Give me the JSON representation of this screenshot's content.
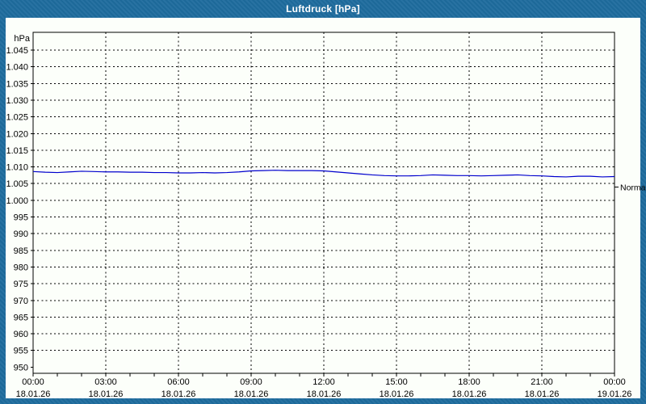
{
  "window": {
    "title": "Luftdruck [hPa]"
  },
  "colors": {
    "titlebar_blue": "#1e6c9e",
    "panel_bg": "#fcfffa",
    "line_blue": "#0000cd",
    "grid_black": "#000000"
  },
  "chart_data": {
    "type": "line",
    "title": "Luftdruck [hPa]",
    "unit_label": "hPa",
    "normal_label": "Normal",
    "normal_value": 1004,
    "ylim": [
      950,
      1045
    ],
    "ytick_step": 5,
    "ytick_labels": [
      "1.045",
      "1.040",
      "1.035",
      "1.030",
      "1.025",
      "1.020",
      "1.015",
      "1.010",
      "1.005",
      "1.000",
      "995",
      "990",
      "985",
      "980",
      "975",
      "970",
      "965",
      "960",
      "955",
      "950"
    ],
    "grid": "dashed",
    "x_hours_range": [
      0,
      24
    ],
    "x_minor_tick_every_hours": 1,
    "x_major_tick_every_hours": 3,
    "x_ticks": [
      {
        "time": "00:00",
        "date": "18.01.26"
      },
      {
        "time": "03:00",
        "date": "18.01.26"
      },
      {
        "time": "06:00",
        "date": "18.01.26"
      },
      {
        "time": "09:00",
        "date": "18.01.26"
      },
      {
        "time": "12:00",
        "date": "18.01.26"
      },
      {
        "time": "15:00",
        "date": "18.01.26"
      },
      {
        "time": "18:00",
        "date": "18.01.26"
      },
      {
        "time": "21:00",
        "date": "18.01.26"
      },
      {
        "time": "00:00",
        "date": "19.01.26"
      }
    ],
    "sample_interval_hours": 0.5,
    "series": [
      {
        "name": "Luftdruck",
        "color": "#0000cd",
        "values": [
          1008.6,
          1008.4,
          1008.3,
          1008.5,
          1008.7,
          1008.6,
          1008.5,
          1008.5,
          1008.4,
          1008.4,
          1008.3,
          1008.3,
          1008.2,
          1008.2,
          1008.3,
          1008.2,
          1008.3,
          1008.5,
          1008.8,
          1008.9,
          1009.0,
          1008.9,
          1008.9,
          1008.9,
          1008.8,
          1008.5,
          1008.2,
          1007.9,
          1007.6,
          1007.4,
          1007.3,
          1007.3,
          1007.4,
          1007.6,
          1007.5,
          1007.4,
          1007.4,
          1007.3,
          1007.4,
          1007.5,
          1007.6,
          1007.4,
          1007.3,
          1007.1,
          1007.0,
          1007.2,
          1007.2,
          1007.0,
          1007.1
        ]
      }
    ]
  }
}
